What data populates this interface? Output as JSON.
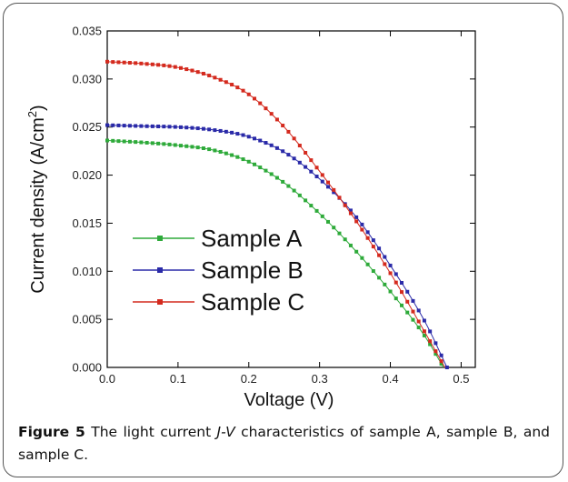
{
  "caption": {
    "figure_label": "Figure 5",
    "text_before": " The light current ",
    "text_italic": "J-V",
    "text_after": " characteristics of sample A, sample B, and sample C."
  },
  "chart_data": {
    "type": "line",
    "xlabel": "Voltage (V)",
    "ylabel": "Current density (A/cm²)",
    "ylabel_base": "Current density (A/cm",
    "ylabel_sup": "2",
    "ylabel_tail": ")",
    "xlim": [
      0.0,
      0.52
    ],
    "ylim": [
      0.0,
      0.035
    ],
    "xticks": [
      "0.0",
      "0.1",
      "0.2",
      "0.3",
      "0.4",
      "0.5"
    ],
    "yticks": [
      "0.000",
      "0.005",
      "0.010",
      "0.015",
      "0.020",
      "0.025",
      "0.030",
      "0.035"
    ],
    "legend_position": "left-center",
    "grid": false,
    "series": [
      {
        "name": "Sample A",
        "color": "#2eaa3a",
        "points": [
          [
            0.0,
            0.0236
          ],
          [
            0.05,
            0.0234
          ],
          [
            0.1,
            0.0231
          ],
          [
            0.15,
            0.0226
          ],
          [
            0.2,
            0.0214
          ],
          [
            0.25,
            0.0192
          ],
          [
            0.3,
            0.016
          ],
          [
            0.35,
            0.0122
          ],
          [
            0.4,
            0.0079
          ],
          [
            0.45,
            0.0031
          ],
          [
            0.475,
            0.0
          ]
        ]
      },
      {
        "name": "Sample B",
        "color": "#2a2aa8",
        "points": [
          [
            0.0,
            0.0252
          ],
          [
            0.05,
            0.0251
          ],
          [
            0.1,
            0.025
          ],
          [
            0.15,
            0.0247
          ],
          [
            0.2,
            0.024
          ],
          [
            0.25,
            0.0224
          ],
          [
            0.3,
            0.0196
          ],
          [
            0.35,
            0.0158
          ],
          [
            0.4,
            0.0106
          ],
          [
            0.45,
            0.0046
          ],
          [
            0.48,
            0.0
          ]
        ]
      },
      {
        "name": "Sample C",
        "color": "#d42a1e",
        "points": [
          [
            0.0,
            0.0318
          ],
          [
            0.05,
            0.0316
          ],
          [
            0.1,
            0.0312
          ],
          [
            0.15,
            0.0302
          ],
          [
            0.2,
            0.0284
          ],
          [
            0.25,
            0.025
          ],
          [
            0.3,
            0.0204
          ],
          [
            0.35,
            0.0154
          ],
          [
            0.4,
            0.0098
          ],
          [
            0.45,
            0.0035
          ],
          [
            0.477,
            0.0
          ]
        ]
      }
    ]
  }
}
